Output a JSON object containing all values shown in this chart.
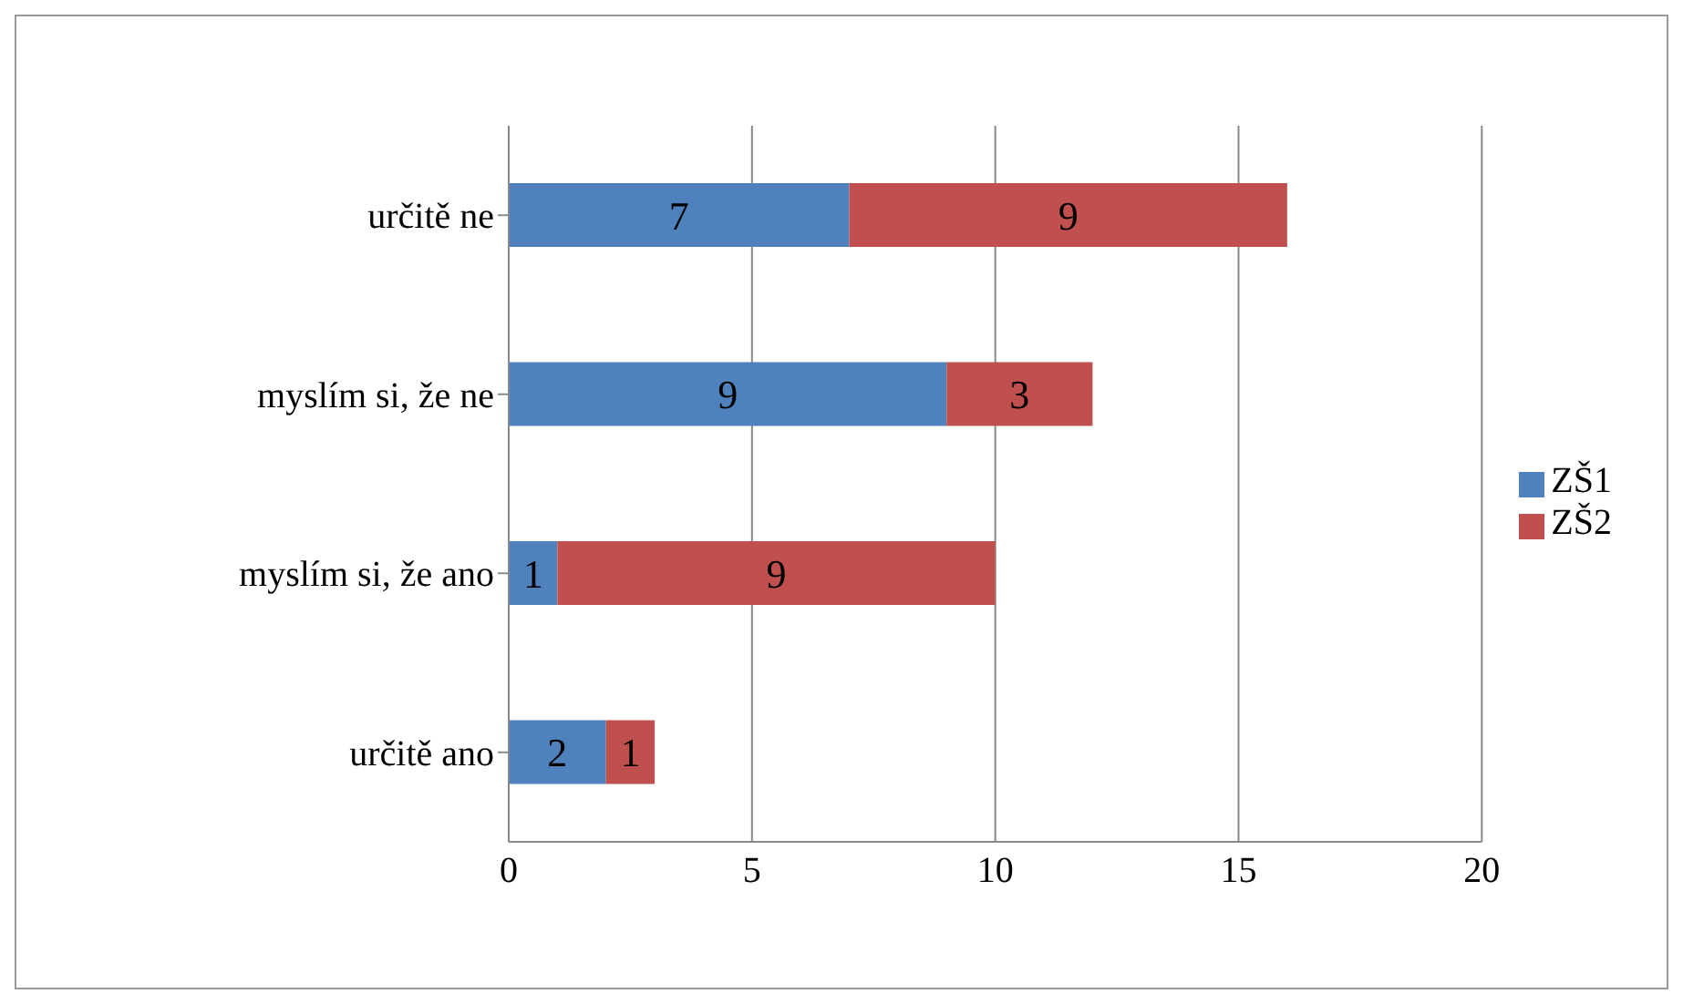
{
  "chart_data": {
    "type": "bar",
    "orientation": "horizontal",
    "stacked": true,
    "categories": [
      "určitě ne",
      "myslím si, že ne",
      "myslím si, že ano",
      "určitě ano"
    ],
    "series": [
      {
        "name": "ZŠ1",
        "color": "#4f81bd",
        "values": [
          7,
          9,
          1,
          2
        ]
      },
      {
        "name": "ZŠ2",
        "color": "#c0504d",
        "values": [
          9,
          3,
          9,
          1
        ]
      }
    ],
    "xlim": [
      0,
      20
    ],
    "xticks": [
      0,
      5,
      10,
      15,
      20
    ],
    "grid": "x",
    "legend": "right",
    "data_labels": true
  }
}
